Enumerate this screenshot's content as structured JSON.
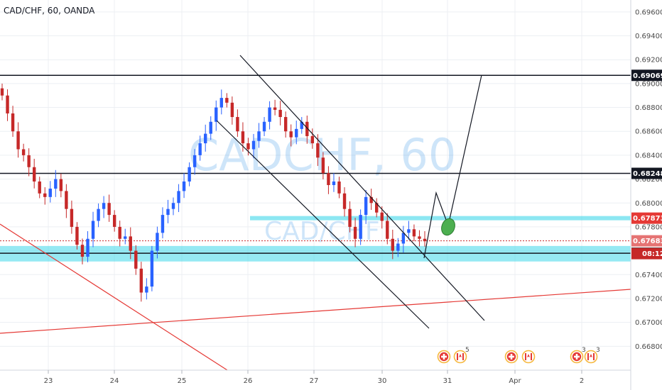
{
  "header": {
    "title": "CAD/CHF, 60, OANDA"
  },
  "watermark": {
    "big": "CADCHF, 60",
    "small": "CAD/CHF"
  },
  "colors": {
    "up": "#2962ff",
    "down": "#c62828",
    "zone": "#3fd7ea",
    "trend_red": "#e53935",
    "grid": "#eceff3",
    "text": "#4a4a4a"
  },
  "chart_data": {
    "type": "candlestick",
    "title": "CAD/CHF, 60, OANDA",
    "ylim": [
      0.666,
      0.697
    ],
    "y_ticks": [
      "0.69600",
      "0.69400",
      "0.69200",
      "0.69000",
      "0.68800",
      "0.68600",
      "0.68400",
      "0.68200",
      "0.68000",
      "0.67800",
      "0.67600",
      "0.67400",
      "0.67200",
      "0.67000",
      "0.66800"
    ],
    "x_ticks": [
      "23",
      "24",
      "25",
      "26",
      "27",
      "30",
      "31",
      "Apr",
      "2"
    ],
    "price_levels": [
      {
        "label": "0.69069",
        "value": 0.69069,
        "style": "black-line"
      },
      {
        "label": "0.68248",
        "value": 0.68248,
        "style": "black-line"
      },
      {
        "label": "0.67873",
        "value": 0.67873,
        "style": "cyan-zone"
      },
      {
        "label": "0.67683",
        "value": 0.67683,
        "style": "current-price"
      },
      {
        "label": "0.67579",
        "value": 0.67579,
        "style": "black-line"
      }
    ],
    "countdown": "08:12",
    "support_zone": [
      0.6751,
      0.6764
    ],
    "close_series": [
      0.689,
      0.6875,
      0.686,
      0.6845,
      0.684,
      0.683,
      0.6818,
      0.6808,
      0.6805,
      0.6812,
      0.682,
      0.681,
      0.6795,
      0.678,
      0.6765,
      0.6755,
      0.677,
      0.6785,
      0.6795,
      0.68,
      0.679,
      0.678,
      0.677,
      0.6772,
      0.676,
      0.6745,
      0.6725,
      0.673,
      0.676,
      0.6775,
      0.679,
      0.6795,
      0.68,
      0.681,
      0.6818,
      0.683,
      0.684,
      0.685,
      0.6858,
      0.6868,
      0.688,
      0.6888,
      0.6884,
      0.6872,
      0.686,
      0.685,
      0.6845,
      0.6852,
      0.686,
      0.6868,
      0.688,
      0.6878,
      0.6872,
      0.686,
      0.6855,
      0.6862,
      0.6868,
      0.6856,
      0.685,
      0.6838,
      0.6825,
      0.6815,
      0.6818,
      0.6808,
      0.6795,
      0.678,
      0.677,
      0.679,
      0.6805,
      0.68,
      0.6792,
      0.6785,
      0.677,
      0.676,
      0.6766,
      0.6775,
      0.6778,
      0.6772,
      0.677,
      0.6768
    ],
    "events": [
      {
        "x": "31",
        "badge": "5"
      },
      {
        "x": "Apr",
        "badge": ""
      },
      {
        "x": "2",
        "badge": "3"
      },
      {
        "x": "2+",
        "badge": "3"
      }
    ]
  }
}
